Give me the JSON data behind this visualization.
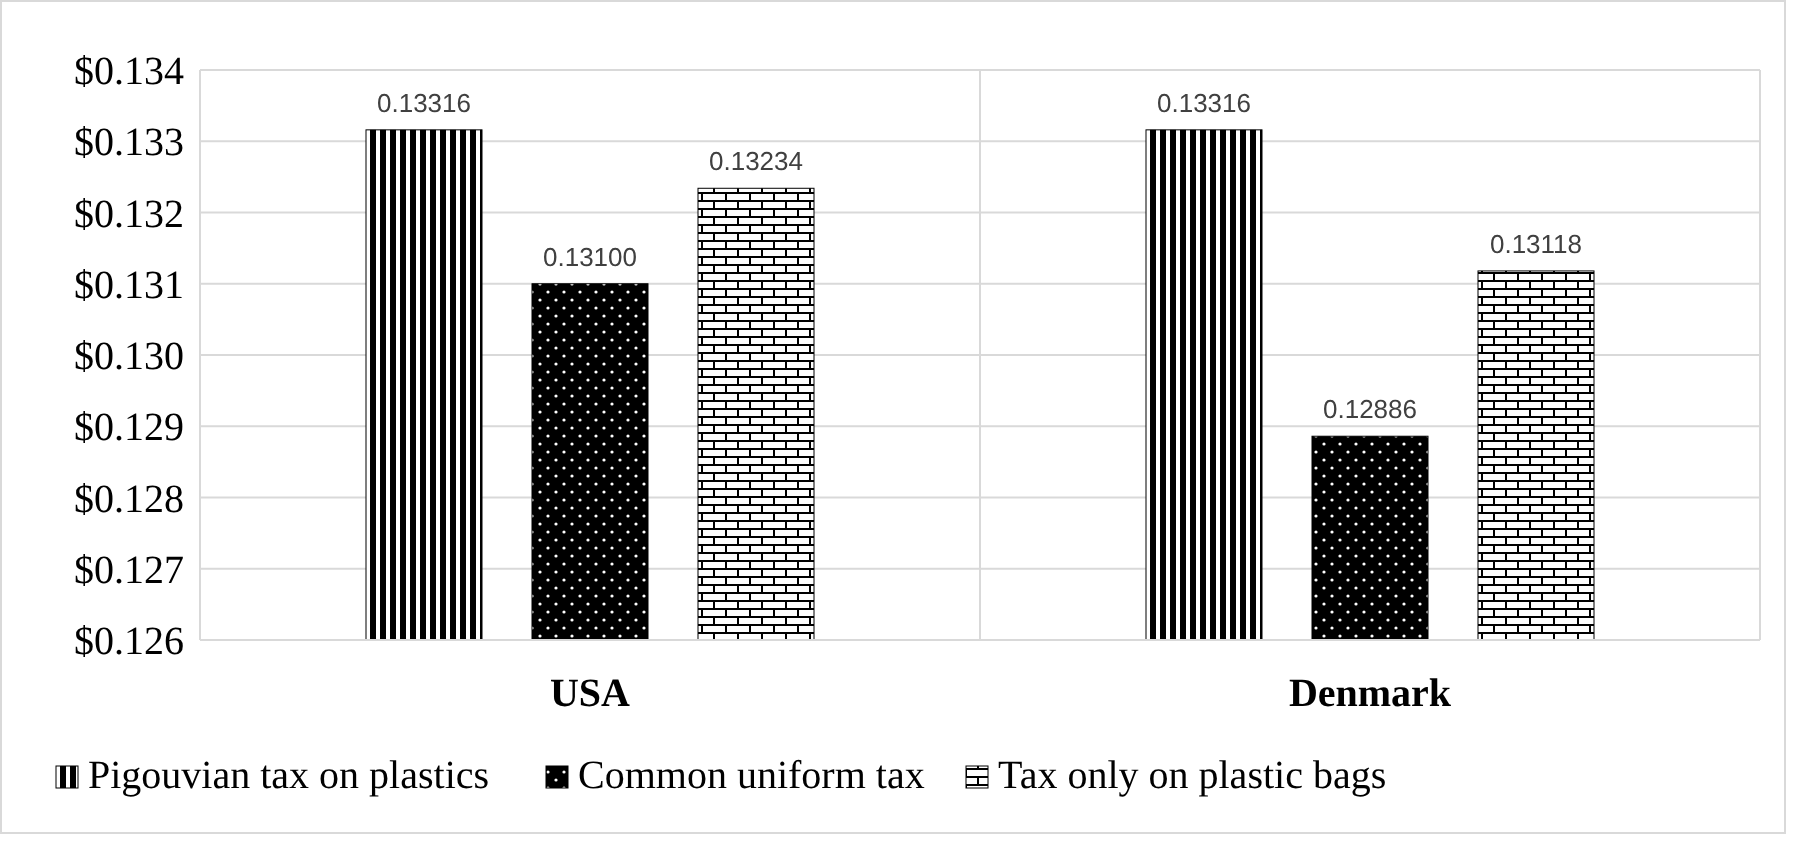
{
  "chart_data": {
    "type": "bar",
    "categories": [
      "USA",
      "Denmark"
    ],
    "series": [
      {
        "name": "Pigouvian tax on plastics",
        "color": "#000000",
        "values": [
          0.13316,
          0.13316
        ],
        "value_labels": [
          "0.13316",
          "0.13316"
        ]
      },
      {
        "name": "Common uniform tax",
        "color": "#000000",
        "values": [
          0.131,
          0.12886
        ],
        "value_labels": [
          "0.13100",
          "0.12886"
        ]
      },
      {
        "name": "Tax only on plastic bags",
        "color": "#000000",
        "values": [
          0.13234,
          0.13118
        ],
        "value_labels": [
          "0.13234",
          "0.13118"
        ]
      }
    ],
    "ylim": [
      0.126,
      0.134
    ],
    "yticks": [
      {
        "value": 0.126,
        "label": "$0.126"
      },
      {
        "value": 0.127,
        "label": "$0.127"
      },
      {
        "value": 0.128,
        "label": "$0.128"
      },
      {
        "value": 0.129,
        "label": "$0.129"
      },
      {
        "value": 0.13,
        "label": "$0.130"
      },
      {
        "value": 0.131,
        "label": "$0.131"
      },
      {
        "value": 0.132,
        "label": "$0.132"
      },
      {
        "value": 0.133,
        "label": "$0.133"
      },
      {
        "value": 0.134,
        "label": "$0.134"
      }
    ],
    "grid": true,
    "legend": "bottom"
  }
}
